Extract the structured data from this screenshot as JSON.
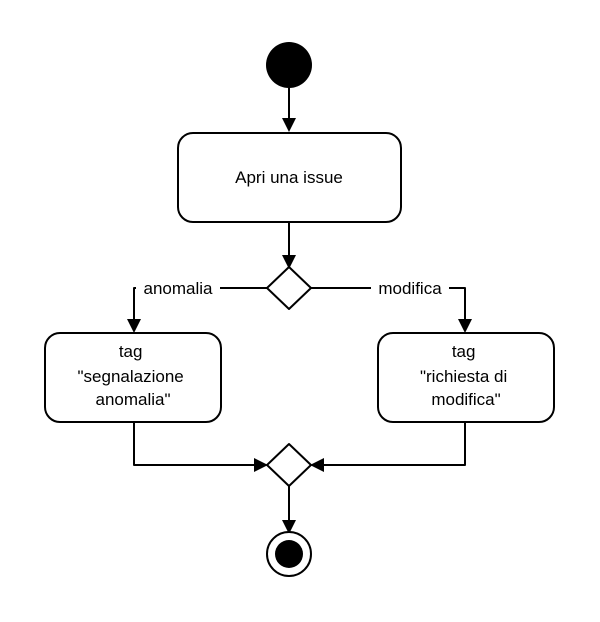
{
  "diagram": {
    "nodes": {
      "start": {
        "type": "initial"
      },
      "open_issue": {
        "type": "action",
        "lines": [
          "Apri una issue"
        ]
      },
      "decision": {
        "type": "decision"
      },
      "tag_anomaly": {
        "type": "action",
        "lines": [
          "tag",
          "\"segnalazione",
          "anomalia\""
        ]
      },
      "tag_change": {
        "type": "action",
        "lines": [
          "tag",
          "\"richiesta di",
          "modifica\""
        ]
      },
      "merge": {
        "type": "merge"
      },
      "end": {
        "type": "final"
      }
    },
    "edges": {
      "anomaly_label": "anomalia",
      "change_label": "modifica"
    },
    "colors": {
      "stroke": "#000000",
      "fill": "#ffffff"
    }
  }
}
